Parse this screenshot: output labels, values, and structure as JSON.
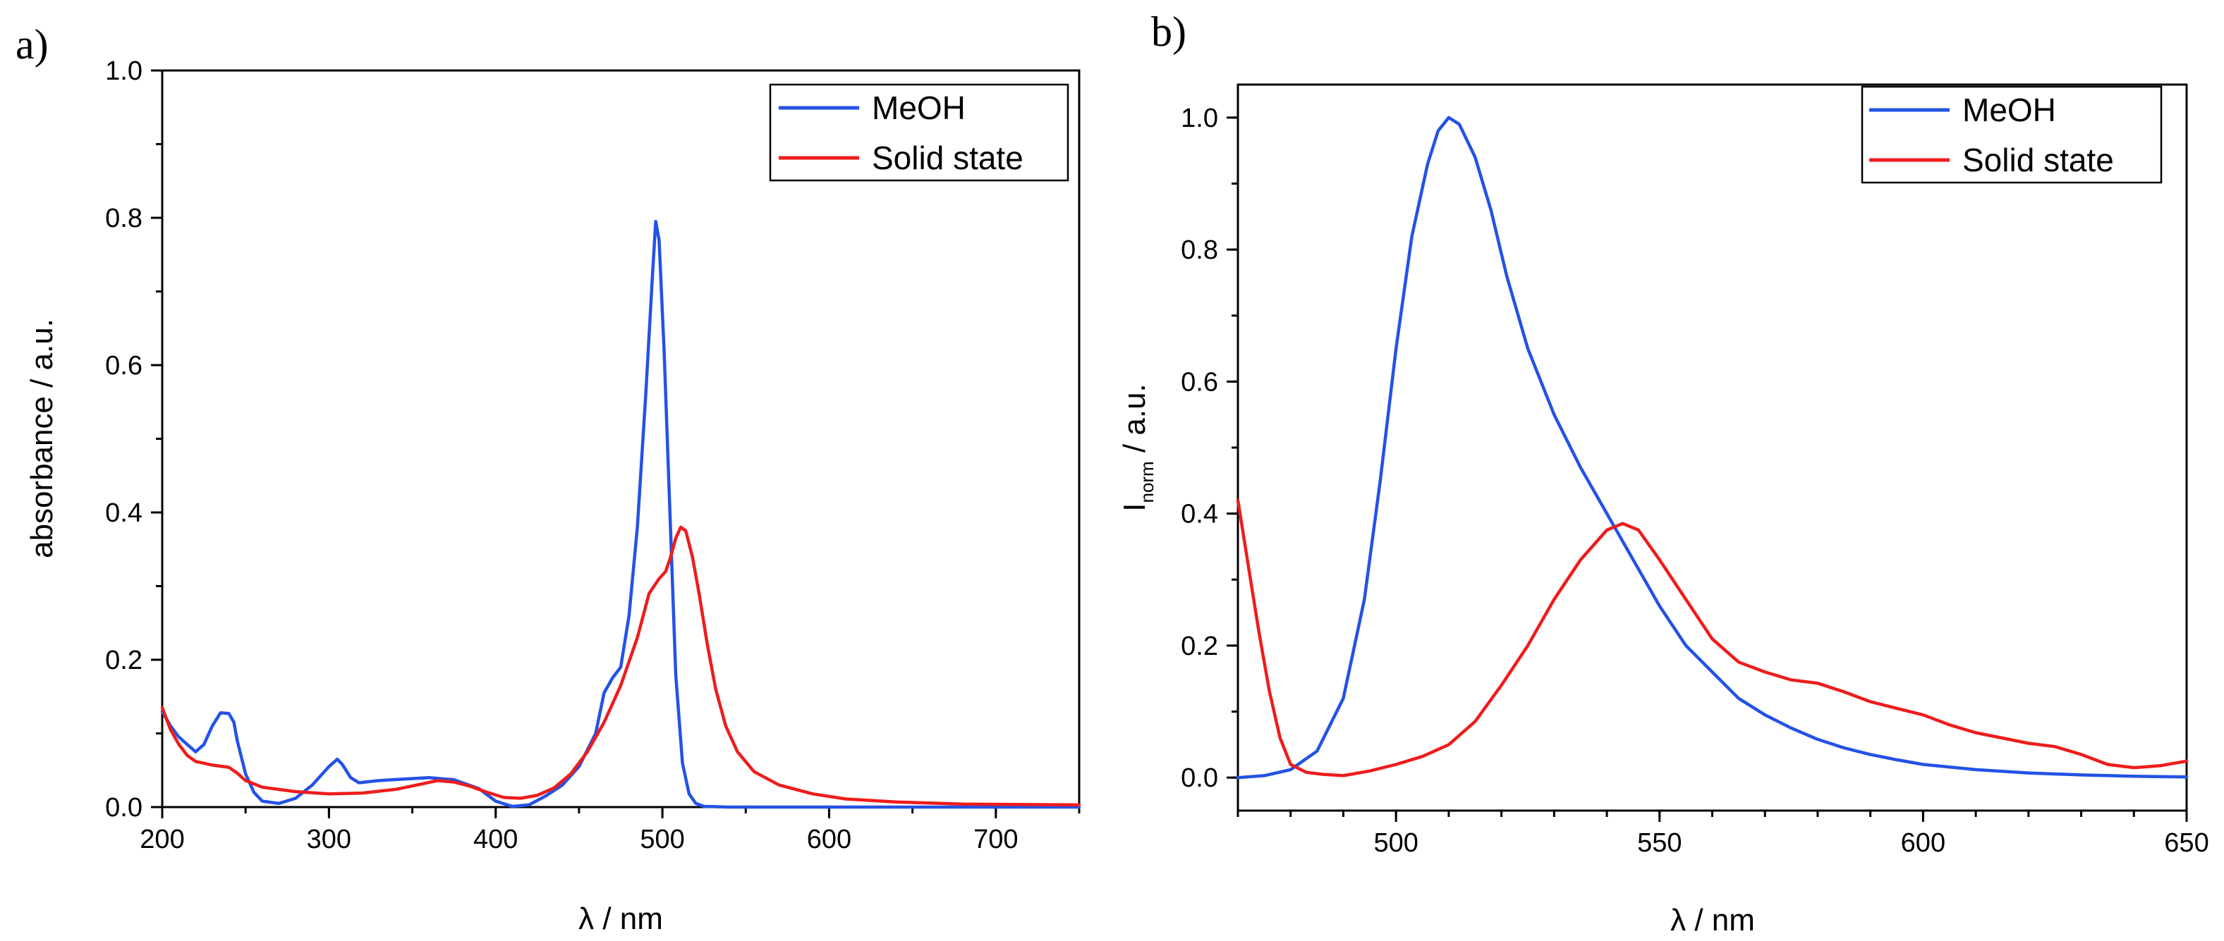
{
  "chart_data": [
    {
      "type": "line",
      "panel_label": "a)",
      "title": "",
      "xlabel": "λ / nm",
      "ylabel": "absorbance / a.u.",
      "xlim": [
        200,
        750
      ],
      "ylim": [
        0,
        1.0
      ],
      "xticks": [
        200,
        300,
        400,
        500,
        600,
        700
      ],
      "xtick_labels": [
        "200",
        "300",
        "400",
        "500",
        "600",
        "700"
      ],
      "xminor_step": 50,
      "yticks": [
        0,
        0.2,
        0.4,
        0.6,
        0.8,
        1.0
      ],
      "ytick_labels": [
        "0.0",
        "0.2",
        "0.4",
        "0.6",
        "0.8",
        "1.0"
      ],
      "yminor_step": 0.1,
      "grid": false,
      "legend_position": "top-right",
      "series": [
        {
          "name": "MeOH",
          "color": "#2352e6",
          "points": [
            [
              200,
              0.13
            ],
            [
              205,
              0.11
            ],
            [
              210,
              0.095
            ],
            [
              215,
              0.085
            ],
            [
              220,
              0.075
            ],
            [
              225,
              0.085
            ],
            [
              230,
              0.11
            ],
            [
              235,
              0.128
            ],
            [
              240,
              0.127
            ],
            [
              243,
              0.115
            ],
            [
              245,
              0.09
            ],
            [
              250,
              0.045
            ],
            [
              255,
              0.02
            ],
            [
              260,
              0.008
            ],
            [
              270,
              0.005
            ],
            [
              280,
              0.012
            ],
            [
              290,
              0.03
            ],
            [
              300,
              0.055
            ],
            [
              305,
              0.065
            ],
            [
              308,
              0.058
            ],
            [
              313,
              0.04
            ],
            [
              318,
              0.033
            ],
            [
              330,
              0.036
            ],
            [
              345,
              0.038
            ],
            [
              360,
              0.04
            ],
            [
              375,
              0.037
            ],
            [
              390,
              0.025
            ],
            [
              400,
              0.008
            ],
            [
              410,
              0.001
            ],
            [
              420,
              0.003
            ],
            [
              430,
              0.015
            ],
            [
              440,
              0.03
            ],
            [
              450,
              0.055
            ],
            [
              460,
              0.1
            ],
            [
              465,
              0.155
            ],
            [
              470,
              0.175
            ],
            [
              475,
              0.19
            ],
            [
              480,
              0.26
            ],
            [
              485,
              0.38
            ],
            [
              490,
              0.56
            ],
            [
              494,
              0.72
            ],
            [
              496,
              0.795
            ],
            [
              498,
              0.77
            ],
            [
              501,
              0.62
            ],
            [
              505,
              0.37
            ],
            [
              508,
              0.18
            ],
            [
              512,
              0.06
            ],
            [
              516,
              0.018
            ],
            [
              520,
              0.005
            ],
            [
              525,
              0.001
            ],
            [
              540,
              0.0
            ],
            [
              600,
              0.0
            ],
            [
              700,
              0.0
            ],
            [
              750,
              0.0
            ]
          ]
        },
        {
          "name": "Solid state",
          "color": "#ee1c1c",
          "points": [
            [
              200,
              0.135
            ],
            [
              205,
              0.105
            ],
            [
              210,
              0.085
            ],
            [
              215,
              0.07
            ],
            [
              220,
              0.062
            ],
            [
              230,
              0.057
            ],
            [
              240,
              0.054
            ],
            [
              245,
              0.046
            ],
            [
              250,
              0.036
            ],
            [
              260,
              0.027
            ],
            [
              280,
              0.021
            ],
            [
              300,
              0.018
            ],
            [
              320,
              0.019
            ],
            [
              340,
              0.024
            ],
            [
              355,
              0.031
            ],
            [
              365,
              0.036
            ],
            [
              375,
              0.034
            ],
            [
              385,
              0.028
            ],
            [
              395,
              0.02
            ],
            [
              405,
              0.013
            ],
            [
              415,
              0.012
            ],
            [
              425,
              0.016
            ],
            [
              435,
              0.026
            ],
            [
              445,
              0.045
            ],
            [
              455,
              0.075
            ],
            [
              465,
              0.115
            ],
            [
              475,
              0.165
            ],
            [
              485,
              0.23
            ],
            [
              492,
              0.29
            ],
            [
              498,
              0.31
            ],
            [
              502,
              0.32
            ],
            [
              505,
              0.34
            ],
            [
              508,
              0.365
            ],
            [
              511,
              0.38
            ],
            [
              514,
              0.375
            ],
            [
              518,
              0.34
            ],
            [
              522,
              0.29
            ],
            [
              527,
              0.22
            ],
            [
              532,
              0.16
            ],
            [
              538,
              0.11
            ],
            [
              545,
              0.075
            ],
            [
              555,
              0.048
            ],
            [
              570,
              0.03
            ],
            [
              590,
              0.018
            ],
            [
              610,
              0.011
            ],
            [
              640,
              0.007
            ],
            [
              680,
              0.004
            ],
            [
              750,
              0.003
            ]
          ]
        }
      ]
    },
    {
      "type": "line",
      "panel_label": "b)",
      "title": "",
      "xlabel": "λ / nm",
      "ylabel_main": "I",
      "ylabel_sub": "norm",
      "ylabel_rest": " / a.u.",
      "xlim": [
        470,
        650
      ],
      "ylim": [
        -0.05,
        1.05
      ],
      "xticks": [
        500,
        550,
        600,
        650
      ],
      "xtick_labels": [
        "500",
        "550",
        "600",
        "650"
      ],
      "xminor_step": 10,
      "yticks": [
        0,
        0.2,
        0.4,
        0.6,
        0.8,
        1.0
      ],
      "ytick_labels": [
        "0.0",
        "0.2",
        "0.4",
        "0.6",
        "0.8",
        "1.0"
      ],
      "yminor_step": 0.1,
      "grid": false,
      "legend_position": "top-right",
      "series": [
        {
          "name": "MeOH",
          "color": "#2352e6",
          "points": [
            [
              470,
              0.0
            ],
            [
              475,
              0.003
            ],
            [
              480,
              0.012
            ],
            [
              485,
              0.04
            ],
            [
              490,
              0.12
            ],
            [
              494,
              0.27
            ],
            [
              497,
              0.45
            ],
            [
              500,
              0.65
            ],
            [
              503,
              0.82
            ],
            [
              506,
              0.93
            ],
            [
              508,
              0.98
            ],
            [
              510,
              1.0
            ],
            [
              512,
              0.99
            ],
            [
              515,
              0.94
            ],
            [
              518,
              0.86
            ],
            [
              521,
              0.76
            ],
            [
              525,
              0.65
            ],
            [
              530,
              0.55
            ],
            [
              535,
              0.47
            ],
            [
              540,
              0.4
            ],
            [
              545,
              0.33
            ],
            [
              550,
              0.26
            ],
            [
              555,
              0.2
            ],
            [
              560,
              0.16
            ],
            [
              565,
              0.12
            ],
            [
              570,
              0.095
            ],
            [
              575,
              0.075
            ],
            [
              580,
              0.058
            ],
            [
              585,
              0.045
            ],
            [
              590,
              0.035
            ],
            [
              595,
              0.027
            ],
            [
              600,
              0.02
            ],
            [
              610,
              0.012
            ],
            [
              620,
              0.007
            ],
            [
              630,
              0.004
            ],
            [
              640,
              0.002
            ],
            [
              650,
              0.001
            ]
          ]
        },
        {
          "name": "Solid state",
          "color": "#ee1c1c",
          "points": [
            [
              470,
              0.42
            ],
            [
              472,
              0.32
            ],
            [
              474,
              0.22
            ],
            [
              476,
              0.13
            ],
            [
              478,
              0.06
            ],
            [
              480,
              0.02
            ],
            [
              483,
              0.008
            ],
            [
              486,
              0.005
            ],
            [
              490,
              0.003
            ],
            [
              495,
              0.01
            ],
            [
              500,
              0.02
            ],
            [
              505,
              0.032
            ],
            [
              510,
              0.05
            ],
            [
              515,
              0.085
            ],
            [
              520,
              0.14
            ],
            [
              525,
              0.2
            ],
            [
              530,
              0.27
            ],
            [
              535,
              0.33
            ],
            [
              540,
              0.375
            ],
            [
              543,
              0.385
            ],
            [
              546,
              0.375
            ],
            [
              550,
              0.33
            ],
            [
              555,
              0.27
            ],
            [
              560,
              0.21
            ],
            [
              565,
              0.175
            ],
            [
              570,
              0.16
            ],
            [
              575,
              0.148
            ],
            [
              580,
              0.143
            ],
            [
              585,
              0.13
            ],
            [
              590,
              0.115
            ],
            [
              595,
              0.105
            ],
            [
              600,
              0.095
            ],
            [
              605,
              0.08
            ],
            [
              610,
              0.068
            ],
            [
              615,
              0.06
            ],
            [
              620,
              0.052
            ],
            [
              625,
              0.047
            ],
            [
              630,
              0.035
            ],
            [
              635,
              0.02
            ],
            [
              640,
              0.015
            ],
            [
              645,
              0.018
            ],
            [
              650,
              0.025
            ]
          ]
        }
      ]
    }
  ]
}
